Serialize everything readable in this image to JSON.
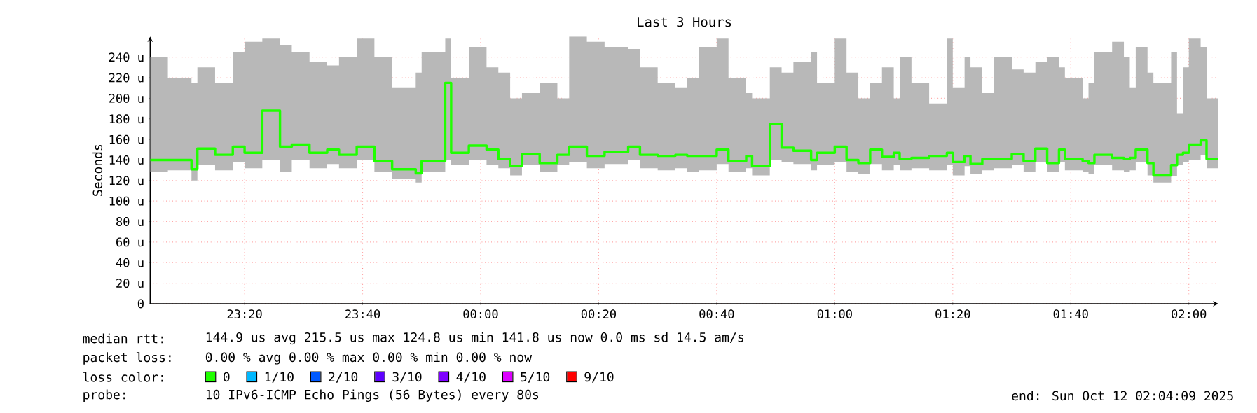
{
  "chart_data": {
    "type": "step",
    "title": "Last 3 Hours",
    "ylabel": "Seconds",
    "legend_title": "loss color:",
    "xlim": [
      "2025-10-11T23:04",
      "2025-10-12T02:05"
    ],
    "ylim": [
      0,
      260
    ],
    "xticks": [
      {
        "value": "2025-10-11T23:20",
        "label": "23:20"
      },
      {
        "value": "2025-10-11T23:40",
        "label": "23:40"
      },
      {
        "value": "2025-10-12T00:00",
        "label": "00:00"
      },
      {
        "value": "2025-10-12T00:20",
        "label": "00:20"
      },
      {
        "value": "2025-10-12T00:40",
        "label": "00:40"
      },
      {
        "value": "2025-10-12T01:00",
        "label": "01:00"
      },
      {
        "value": "2025-10-12T01:20",
        "label": "01:20"
      },
      {
        "value": "2025-10-12T01:40",
        "label": "01:40"
      },
      {
        "value": "2025-10-12T02:00",
        "label": "02:00"
      }
    ],
    "yticks": [
      0,
      {
        "value": 20,
        "label": "20 u"
      },
      {
        "value": 40,
        "label": "40 u"
      },
      {
        "value": 60,
        "label": "60 u"
      },
      {
        "value": 80,
        "label": "80 u"
      },
      {
        "value": 100,
        "label": "100 u"
      },
      {
        "value": 120,
        "label": "120 u"
      },
      {
        "value": 140,
        "label": "140 u"
      },
      {
        "value": 160,
        "label": "160 u"
      },
      {
        "value": 180,
        "label": "180 u"
      },
      {
        "value": 200,
        "label": "200 u"
      },
      {
        "value": 220,
        "label": "220 u"
      },
      {
        "value": 240,
        "label": "240 u"
      }
    ],
    "grid": true,
    "legend": "bottom",
    "marker": "none",
    "annotations": [
      "median rtt:",
      "144.9 us avg  215.5 us max  124.8 us min  141.8 us now  0.0 ms sd  14.5   am/s",
      "packet loss:",
      "0.00 % avg  0.00 % max  0.00 % min  0.00 % now",
      "probe:",
      "10 IPv6-ICMP Echo Pings (56 Bytes) every 80s",
      "end: Sun Oct 12 02:04:09 2025"
    ],
    "series": [
      {
        "name": "0",
        "color": "#20ff00",
        "x": [
          "2025-10-11T23:04",
          "2025-10-11T23:07",
          "2025-10-11T23:11",
          "2025-10-11T23:12",
          "2025-10-11T23:15",
          "2025-10-11T23:18",
          "2025-10-11T23:20",
          "2025-10-11T23:23",
          "2025-10-11T23:26",
          "2025-10-11T23:28",
          "2025-10-11T23:31",
          "2025-10-11T23:34",
          "2025-10-11T23:36",
          "2025-10-11T23:39",
          "2025-10-11T23:42",
          "2025-10-11T23:45",
          "2025-10-11T23:49",
          "2025-10-11T23:50",
          "2025-10-11T23:54",
          "2025-10-11T23:55",
          "2025-10-11T23:58",
          "2025-10-12T00:01",
          "2025-10-12T00:03",
          "2025-10-12T00:05",
          "2025-10-12T00:07",
          "2025-10-12T00:10",
          "2025-10-12T00:13",
          "2025-10-12T00:15",
          "2025-10-12T00:18",
          "2025-10-12T00:21",
          "2025-10-12T00:25",
          "2025-10-12T00:27",
          "2025-10-12T00:30",
          "2025-10-12T00:33",
          "2025-10-12T00:35",
          "2025-10-12T00:37",
          "2025-10-12T00:40",
          "2025-10-12T00:42",
          "2025-10-12T00:45",
          "2025-10-12T00:46",
          "2025-10-12T00:49",
          "2025-10-12T00:51",
          "2025-10-12T00:53",
          "2025-10-12T00:56",
          "2025-10-12T00:57",
          "2025-10-12T01:00",
          "2025-10-12T01:02",
          "2025-10-12T01:04",
          "2025-10-12T01:06",
          "2025-10-12T01:08",
          "2025-10-12T01:10",
          "2025-10-12T01:11",
          "2025-10-12T01:13",
          "2025-10-12T01:16",
          "2025-10-12T01:19",
          "2025-10-12T01:20",
          "2025-10-12T01:22",
          "2025-10-12T01:23",
          "2025-10-12T01:25",
          "2025-10-12T01:27",
          "2025-10-12T01:30",
          "2025-10-12T01:32",
          "2025-10-12T01:34",
          "2025-10-12T01:36",
          "2025-10-12T01:38",
          "2025-10-12T01:39",
          "2025-10-12T01:42",
          "2025-10-12T01:43",
          "2025-10-12T01:44",
          "2025-10-12T01:47",
          "2025-10-12T01:49",
          "2025-10-12T01:50",
          "2025-10-12T01:51",
          "2025-10-12T01:53",
          "2025-10-12T01:54",
          "2025-10-12T01:57",
          "2025-10-12T01:58",
          "2025-10-12T01:59",
          "2025-10-12T02:00",
          "2025-10-12T02:02",
          "2025-10-12T02:03",
          "2025-10-12T02:05"
        ],
        "values": [
          140,
          140,
          131,
          151,
          145,
          153,
          147,
          188,
          153,
          155,
          147,
          150,
          145,
          153,
          139,
          131,
          127,
          139,
          215,
          147,
          154,
          150,
          141,
          134,
          146,
          137,
          145,
          153,
          144,
          148,
          153,
          145,
          144,
          145,
          144,
          144,
          150,
          139,
          144,
          134,
          175,
          152,
          149,
          140,
          147,
          153,
          140,
          137,
          150,
          143,
          147,
          141,
          142,
          144,
          147,
          138,
          144,
          136,
          141,
          141,
          146,
          139,
          151,
          137,
          150,
          141,
          139,
          137,
          145,
          142,
          141,
          142,
          150,
          137,
          125,
          135,
          145,
          147,
          155,
          159,
          141,
          141
        ],
        "lower": [
          128,
          130,
          120,
          135,
          130,
          138,
          132,
          140,
          128,
          140,
          132,
          136,
          132,
          140,
          128,
          122,
          118,
          128,
          140,
          135,
          140,
          135,
          132,
          125,
          135,
          128,
          135,
          138,
          132,
          136,
          140,
          132,
          130,
          132,
          128,
          130,
          136,
          128,
          132,
          125,
          140,
          138,
          136,
          130,
          135,
          138,
          128,
          126,
          136,
          130,
          135,
          130,
          132,
          130,
          135,
          125,
          134,
          126,
          130,
          132,
          135,
          128,
          138,
          128,
          138,
          130,
          128,
          126,
          135,
          130,
          128,
          130,
          138,
          125,
          118,
          124,
          135,
          138,
          140,
          145,
          132,
          132
        ],
        "upper": [
          240,
          220,
          215,
          230,
          215,
          245,
          255,
          258,
          252,
          245,
          235,
          232,
          240,
          258,
          240,
          210,
          225,
          245,
          258,
          220,
          250,
          230,
          225,
          200,
          205,
          215,
          200,
          260,
          255,
          250,
          248,
          230,
          215,
          210,
          220,
          250,
          258,
          220,
          205,
          200,
          230,
          225,
          235,
          245,
          215,
          258,
          225,
          200,
          215,
          230,
          200,
          240,
          215,
          195,
          258,
          210,
          240,
          230,
          205,
          240,
          228,
          225,
          235,
          240,
          230,
          220,
          200,
          215,
          245,
          255,
          240,
          210,
          250,
          225,
          215,
          245,
          185,
          230,
          258,
          250,
          200,
          200
        ]
      },
      {
        "name": "1/10",
        "color": "#00b8ff",
        "values": [
          null
        ]
      },
      {
        "name": "2/10",
        "color": "#0059ff",
        "values": [
          null
        ]
      },
      {
        "name": "3/10",
        "color": "#5e00ff",
        "values": [
          null
        ]
      },
      {
        "name": "4/10",
        "color": "#7e00ff",
        "values": [
          null
        ]
      },
      {
        "name": "5/10",
        "color": "#dd00ff",
        "values": [
          null
        ]
      },
      {
        "name": "9/10",
        "color": "#ff0000",
        "values": [
          null
        ]
      }
    ]
  }
}
